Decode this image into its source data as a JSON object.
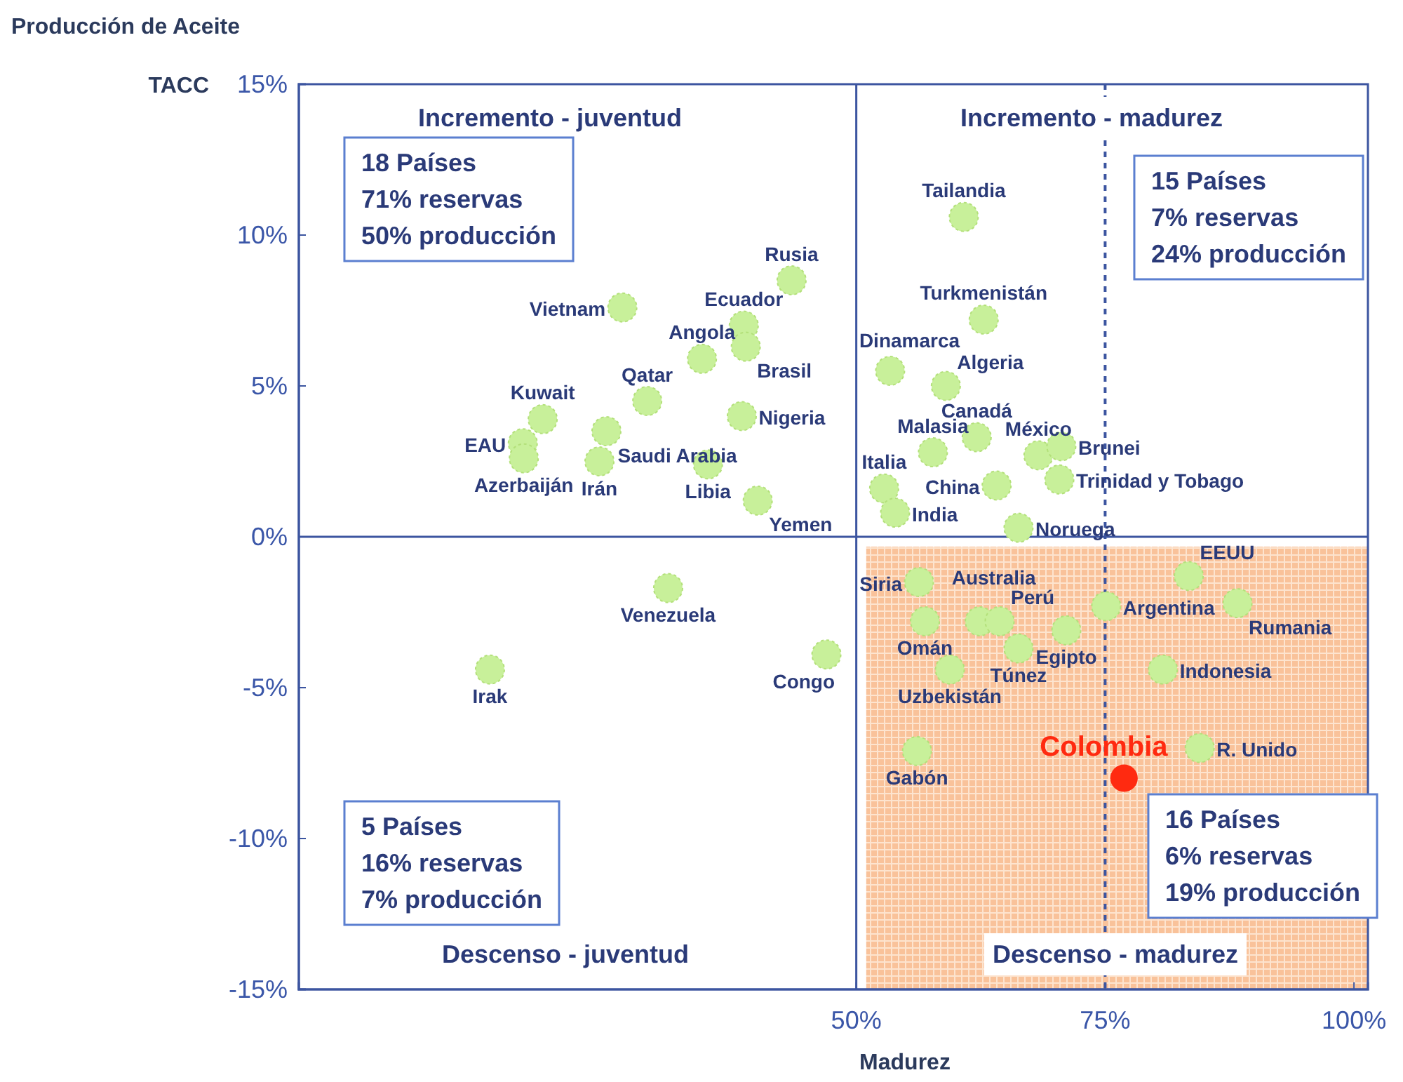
{
  "chart_data": {
    "type": "scatter",
    "title": "Producción de Aceite",
    "ylabel": "TACC",
    "xlabel": "Madurez",
    "xlim": [
      -6,
      101.4
    ],
    "ylim": [
      -15,
      15
    ],
    "xticks": [
      {
        "value": 50,
        "label": "50%"
      },
      {
        "value": 75,
        "label": "75%"
      },
      {
        "value": 100,
        "label": "100%"
      }
    ],
    "yticks": [
      {
        "value": -15,
        "label": "-15%"
      },
      {
        "value": -10,
        "label": "-10%"
      },
      {
        "value": -5,
        "label": "-5%"
      },
      {
        "value": 0,
        "label": "0%"
      },
      {
        "value": 5,
        "label": "5%"
      },
      {
        "value": 10,
        "label": "10%"
      },
      {
        "value": 15,
        "label": "15%"
      }
    ],
    "grid": false,
    "marker": "circle",
    "ref_lines": [
      {
        "axis": "x",
        "value": 50,
        "color": "#3c55a0",
        "line_style": "solid"
      },
      {
        "axis": "y",
        "value": 0,
        "color": "#3c55a0",
        "line_style": "solid"
      },
      {
        "axis": "x",
        "value": 75,
        "color": "#3c55a0",
        "line_style": "dashed"
      }
    ],
    "bands": [
      {
        "axis": "x",
        "from": 51,
        "to": 101.4,
        "color": "#f9c29a"
      }
    ],
    "series": [
      {
        "color": "#c8f09a",
        "x": [
          60.8,
          43.5,
          26.5,
          38.7,
          38.9,
          34.5,
          62.8,
          53.4,
          59.0,
          29.0,
          18.5,
          38.5,
          24.9,
          16.5,
          16.6,
          24.2,
          62.1,
          57.7,
          68.3,
          70.6,
          70.4,
          35.1,
          52.8,
          64.1,
          53.9,
          40.1,
          66.3,
          56.3,
          31.1,
          62.4,
          64.4,
          75.1,
          83.4,
          88.3,
          56.9,
          71.1,
          66.3,
          47.0,
          13.2,
          80.8,
          59.4,
          84.5,
          56.1
        ],
        "values": [
          10.6,
          8.5,
          7.6,
          7.0,
          6.3,
          5.9,
          7.2,
          5.5,
          5.0,
          4.5,
          3.9,
          4.0,
          3.5,
          3.1,
          2.6,
          2.5,
          3.3,
          2.8,
          2.7,
          3.0,
          1.9,
          2.4,
          1.6,
          1.7,
          0.8,
          1.2,
          0.3,
          -1.5,
          -1.7,
          -2.8,
          -2.8,
          -2.3,
          -1.3,
          -2.2,
          -2.8,
          -3.1,
          -3.7,
          -3.9,
          -4.4,
          -4.4,
          -4.4,
          -7.0,
          -7.1
        ],
        "value_labels": [
          "Tailandia",
          "Rusia",
          "Vietnam",
          "Ecuador",
          "Brasil",
          "Angola",
          "Turkmenistán",
          "Dinamarca",
          "Algeria",
          "Qatar",
          "Kuwait",
          "Nigeria",
          "Saudi Arabia",
          "EAU",
          "Azerbaiján",
          "Irán",
          "Canadá",
          "Malasia",
          "México",
          "Brunei",
          "Trinidad y Tobago",
          "Libia",
          "Italia",
          "China",
          "India",
          "Yemen",
          "Noruega",
          "Siria",
          "Venezuela",
          "Australia",
          "Perú",
          "Argentina",
          "EEUU",
          "Rumania",
          "Omán",
          "Egipto",
          "Túnez",
          "Congo",
          "Irak",
          "Indonesia",
          "Uzbekistán",
          "R. Unido",
          "Gabón"
        ]
      },
      {
        "name": "Colombia",
        "color": "#ff2a10",
        "x": [
          76.9
        ],
        "values": [
          -8.0
        ]
      }
    ],
    "annotations": [
      "Incremento - juventud",
      "Incremento - madurez",
      "Descenso - juventud",
      "Descenso - madurez",
      "18 Países\n71% reservas\n50% producción",
      "15 Países\n7% reservas\n24% producción",
      "5 Países\n16% reservas\n7% producción",
      "16 Países\n6% reservas\n19% producción"
    ]
  }
}
